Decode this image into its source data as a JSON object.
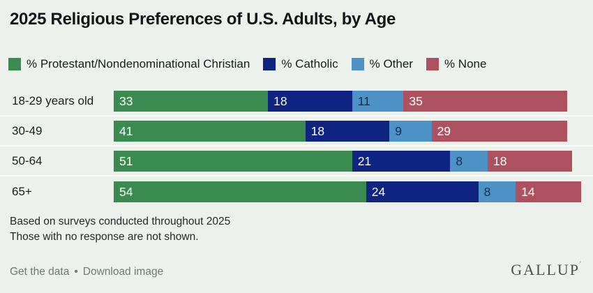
{
  "title": "2025 Religious Preferences of U.S. Adults, by Age",
  "colors": {
    "background": "#edf1ec",
    "row_divider": "#f8fbf6",
    "green": "#3b8a50",
    "navy": "#0f2480",
    "light_blue": "#4d92c7",
    "rose": "#ad5160"
  },
  "chart_data": {
    "type": "bar",
    "orientation": "horizontal",
    "stacked": true,
    "title": "2025 Religious Preferences of U.S. Adults, by Age",
    "categories": [
      "18-29 years old",
      "30-49",
      "50-64",
      "65+"
    ],
    "series": [
      {
        "name": "% Protestant/Nondenominational Christian",
        "color": "#3b8a50",
        "label_color": "#ffffff",
        "values": [
          33,
          41,
          51,
          54
        ]
      },
      {
        "name": "% Catholic",
        "color": "#0f2480",
        "label_color": "#ffffff",
        "values": [
          18,
          18,
          21,
          24
        ]
      },
      {
        "name": "% Other",
        "color": "#4d92c7",
        "label_color": "#142b52",
        "values": [
          11,
          9,
          8,
          8
        ]
      },
      {
        "name": "% None",
        "color": "#ad5160",
        "label_color": "#ffffff",
        "values": [
          35,
          29,
          18,
          14
        ]
      }
    ],
    "xlim": [
      0,
      100
    ],
    "value_labels": "inside-start",
    "legend_position": "top",
    "grid": false
  },
  "notes": {
    "line1": "Based on surveys conducted throughout 2025",
    "line2": "Those with no response are not shown."
  },
  "footer": {
    "get_data_label": "Get the data",
    "separator": "•",
    "download_label": "Download image",
    "brand": "GALLUP",
    "brand_mark": "′"
  }
}
